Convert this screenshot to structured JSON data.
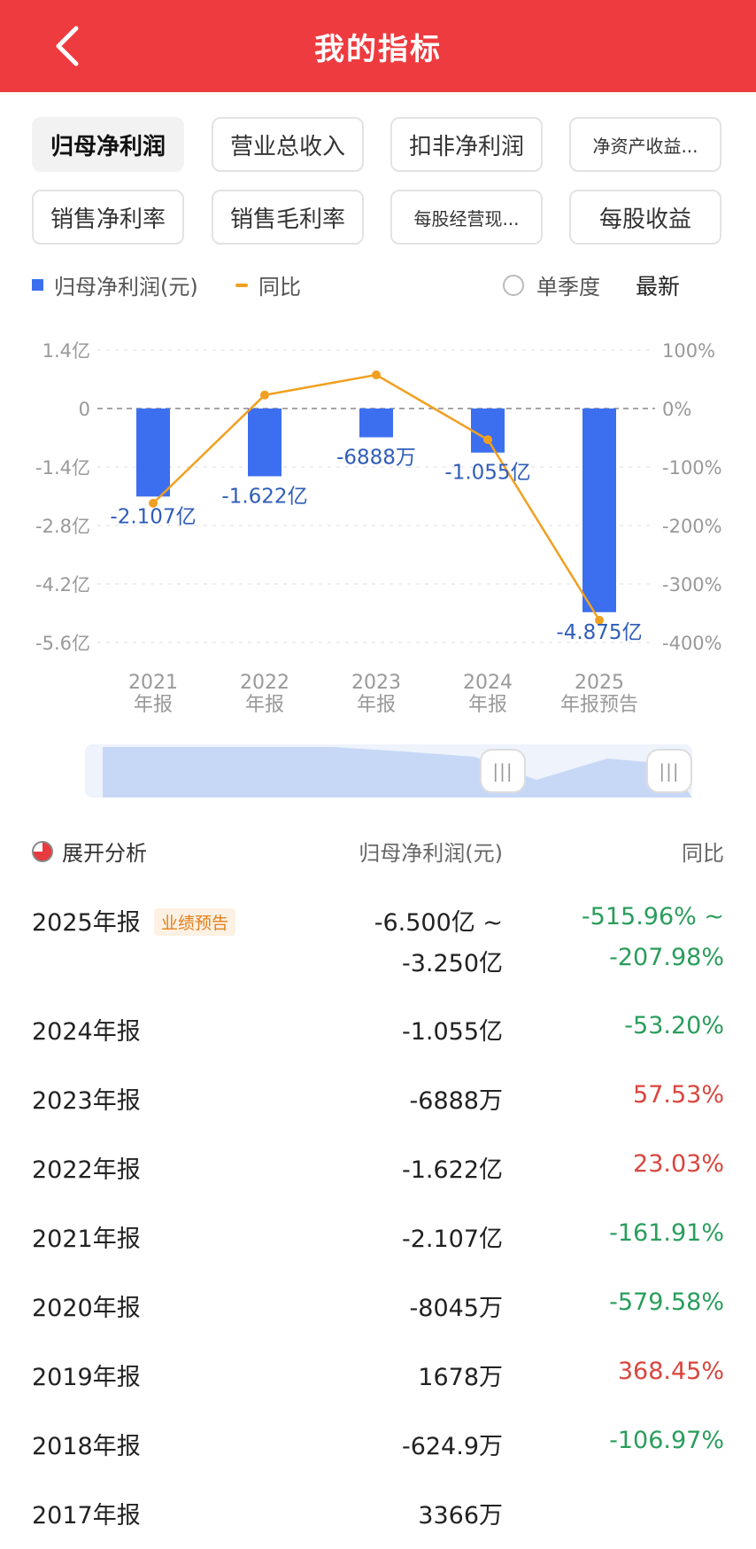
{
  "header": {
    "title": "我的指标"
  },
  "tabs": [
    {
      "label": "归母净利润",
      "active": true
    },
    {
      "label": "营业总收入"
    },
    {
      "label": "扣非净利润"
    },
    {
      "label": "净资产收益..."
    },
    {
      "label": "销售净利率"
    },
    {
      "label": "销售毛利率"
    },
    {
      "label": "每股经营现..."
    },
    {
      "label": "每股收益"
    }
  ],
  "legend": {
    "series1": "归母净利润(元)",
    "series2": "同比",
    "quarter": "单季度",
    "latest": "最新"
  },
  "colors": {
    "header": "#ee3b3f",
    "bar": "#3c6ff0",
    "line": "#f0a020",
    "up": "#d9453e",
    "down": "#2a9d5c",
    "badge": "#e37e1a"
  },
  "chart_data": {
    "type": "bar",
    "categories": [
      [
        "2021",
        "年报"
      ],
      [
        "2022",
        "年报"
      ],
      [
        "2023",
        "年报"
      ],
      [
        "2024",
        "年报"
      ],
      [
        "2025",
        "年报预告"
      ]
    ],
    "series": [
      {
        "name": "归母净利润(元)",
        "type": "bar",
        "values": [
          -2.107,
          -1.622,
          -0.6888,
          -1.055,
          -4.875
        ],
        "unit": "亿",
        "labels": [
          "-2.107亿",
          "-1.622亿",
          "-6888万",
          "-1.055亿",
          "-4.875亿"
        ]
      },
      {
        "name": "同比",
        "type": "line",
        "values": [
          -161.91,
          23.03,
          57.53,
          -53.2,
          -361.97
        ],
        "unit": "%"
      }
    ],
    "y_left": {
      "ticks": [
        "1.4亿",
        "0",
        "-1.4亿",
        "-2.8亿",
        "-4.2亿",
        "-5.6亿"
      ],
      "range": [
        -5.6,
        1.4
      ]
    },
    "y_right": {
      "ticks": [
        "100%",
        "0%",
        "-100%",
        "-200%",
        "-300%",
        "-400%"
      ],
      "range": [
        -400,
        100
      ]
    },
    "grid": true
  },
  "table": {
    "expand": "展开分析",
    "col_value": "归母净利润(元)",
    "col_yoy": "同比",
    "rows": [
      {
        "year": "2025年报",
        "badge": "业绩预告",
        "value": "-6.500亿 ~",
        "value2": "-3.250亿",
        "yoy": "-515.96% ~",
        "yoy2": "-207.98%",
        "dir": "down"
      },
      {
        "year": "2024年报",
        "value": "-1.055亿",
        "yoy": "-53.20%",
        "dir": "down"
      },
      {
        "year": "2023年报",
        "value": "-6888万",
        "yoy": "57.53%",
        "dir": "up"
      },
      {
        "year": "2022年报",
        "value": "-1.622亿",
        "yoy": "23.03%",
        "dir": "up"
      },
      {
        "year": "2021年报",
        "value": "-2.107亿",
        "yoy": "-161.91%",
        "dir": "down"
      },
      {
        "year": "2020年报",
        "value": "-8045万",
        "yoy": "-579.58%",
        "dir": "down"
      },
      {
        "year": "2019年报",
        "value": "1678万",
        "yoy": "368.45%",
        "dir": "up"
      },
      {
        "year": "2018年报",
        "value": "-624.9万",
        "yoy": "-106.97%",
        "dir": "down"
      },
      {
        "year": "2017年报",
        "value": "3366万",
        "yoy": "",
        "dir": "up"
      }
    ]
  }
}
